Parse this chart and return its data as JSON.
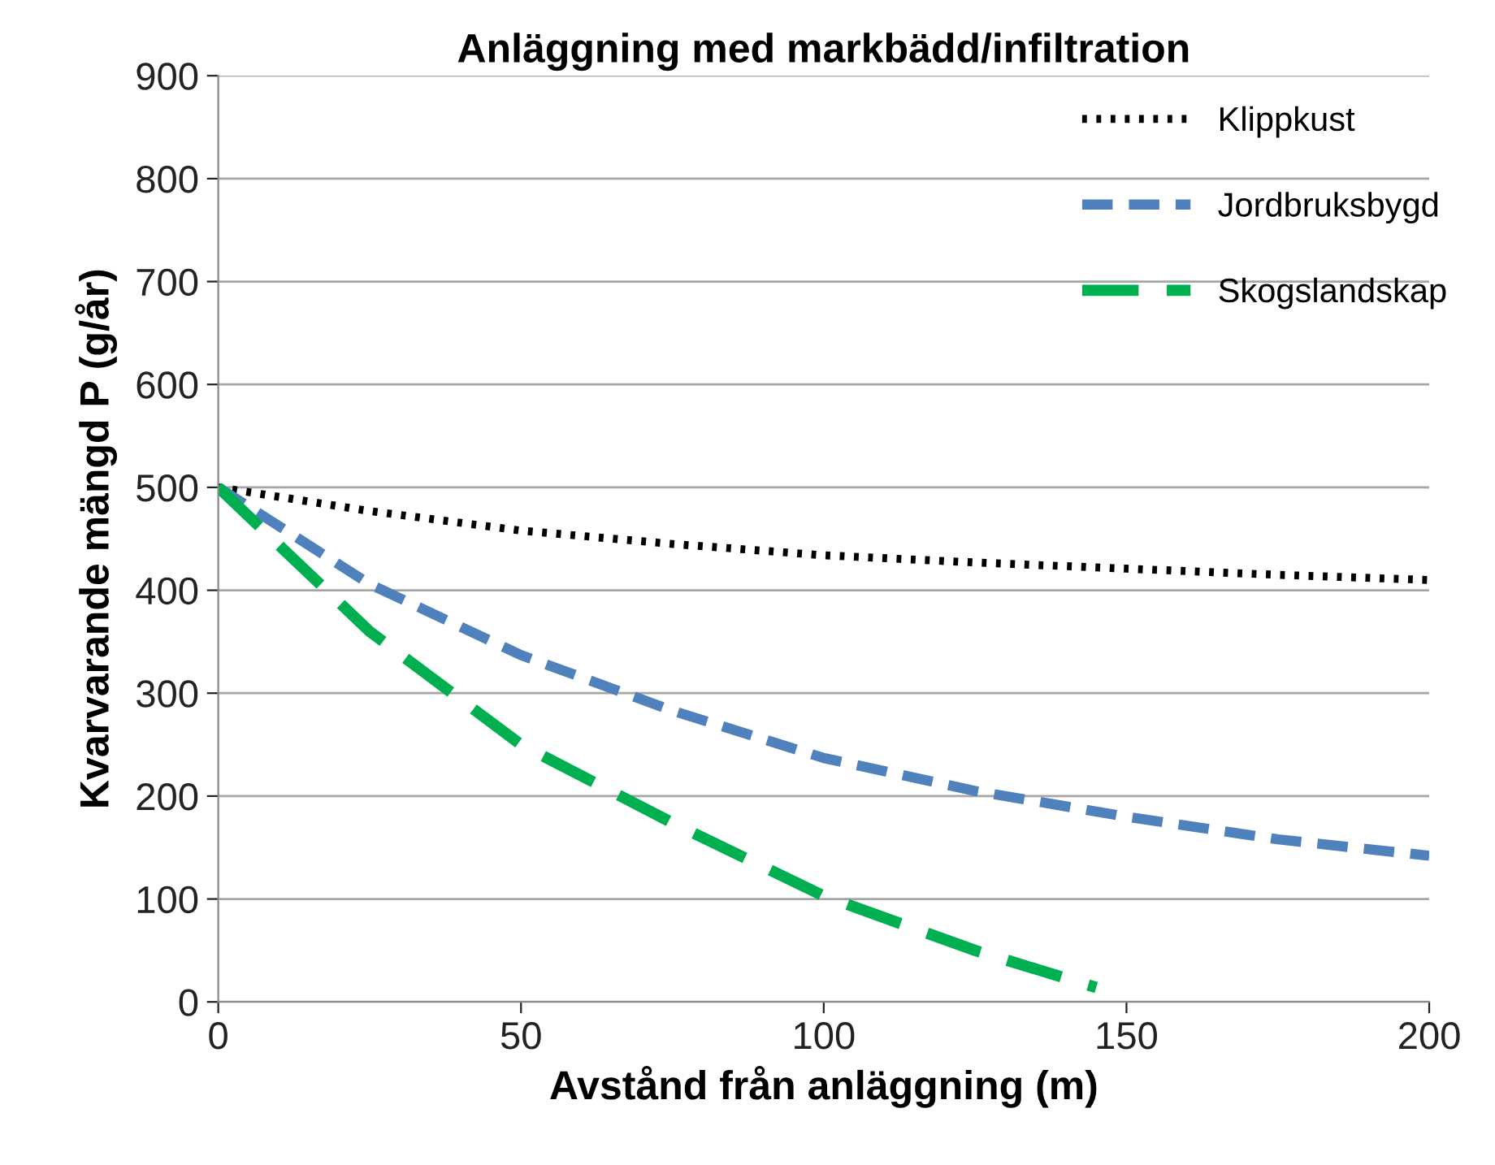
{
  "chart_data": {
    "type": "line",
    "title": "Anläggning med markbädd/infiltration",
    "xlabel": "Avstånd från anläggning (m)",
    "ylabel": "Kvarvarande mängd P (g/år)",
    "xlim": [
      0,
      200
    ],
    "xticks": [
      0,
      50,
      100,
      150,
      200
    ],
    "ylim": [
      0,
      900
    ],
    "yticks": [
      0,
      100,
      200,
      300,
      400,
      500,
      600,
      700,
      800,
      900
    ],
    "grid": "y",
    "legend": "top right",
    "marker": "none",
    "series": [
      {
        "name": "Klippkust",
        "color": "#000000",
        "line_style": "dotted",
        "x": [
          0,
          25,
          50,
          75,
          100,
          125,
          150,
          175,
          200
        ],
        "values": [
          500,
          477,
          458,
          445,
          434,
          427,
          421,
          415,
          410
        ]
      },
      {
        "name": "Jordbruksbygd",
        "color": "#4f81bd",
        "line_style": "dashed",
        "x": [
          0,
          25,
          50,
          75,
          100,
          125,
          150,
          175,
          200
        ],
        "values": [
          500,
          406,
          337,
          283,
          237,
          205,
          180,
          158,
          142
        ]
      },
      {
        "name": "Skogslandskap",
        "color": "#00b050",
        "line_style": "dashed",
        "x": [
          0,
          25,
          50,
          75,
          100,
          125,
          145
        ],
        "values": [
          500,
          360,
          250,
          174,
          103,
          50,
          14
        ]
      }
    ]
  }
}
